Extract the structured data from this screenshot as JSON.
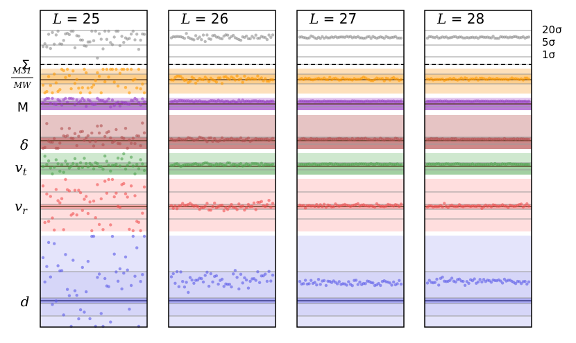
{
  "chart_data": {
    "type": "scatter",
    "panels": [
      {
        "title_prefix": "L",
        "title_value": "25",
        "noise": 1.0
      },
      {
        "title_prefix": "L",
        "title_value": "26",
        "noise": 0.18
      },
      {
        "title_prefix": "L",
        "title_value": "27",
        "noise": 0.07
      },
      {
        "title_prefix": "L",
        "title_value": "28",
        "noise": 0.06
      }
    ],
    "rows": [
      {
        "label": "Σ",
        "color": "#8c8c8c",
        "band_color": "#ffffff",
        "style": "sigma"
      },
      {
        "label_top": "M31",
        "label_bottom": "MW",
        "color": "#ff9900",
        "band_color": "#fde0bb"
      },
      {
        "label": "M",
        "color": "#9a3fc6",
        "band_color": "#e3c8ef"
      },
      {
        "label": "δ",
        "color": "#b05050",
        "band_color": "#e6c4c4"
      },
      {
        "label": "v",
        "label_sub": "t",
        "color": "#4ea24e",
        "band_color": "#cfe8cf"
      },
      {
        "label": "v",
        "label_sub": "r",
        "color": "#f05050",
        "band_color": "#ffdede"
      },
      {
        "label": "d",
        "color": "#5a5ae8",
        "band_color": "#e4e4fb"
      }
    ],
    "sigma_levels": [
      "20σ",
      "5σ",
      "1σ"
    ],
    "points_per_panel": 55
  }
}
